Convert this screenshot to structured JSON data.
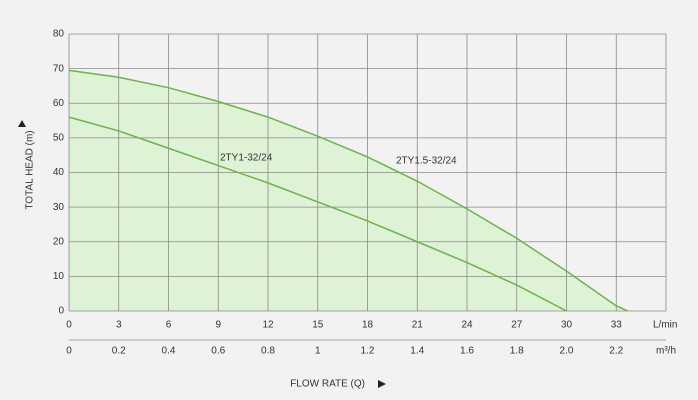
{
  "chart_data": {
    "type": "line",
    "xlabel": "FLOW RATE (Q)",
    "ylabel": "TOTAL HEAD (m)",
    "x_unit": "L/min",
    "x2_unit": "m³/h",
    "xlim": [
      0,
      36
    ],
    "xticks": [
      0,
      3,
      6,
      9,
      12,
      15,
      18,
      21,
      24,
      27,
      30,
      33
    ],
    "x2lim": [
      0,
      2.4
    ],
    "x2ticks": [
      0,
      0.2,
      0.4,
      0.6,
      0.8,
      1,
      1.2,
      1.4,
      1.6,
      1.8,
      {
        "value": 2,
        "label": "2.0"
      },
      2.2
    ],
    "ylim": [
      0,
      80
    ],
    "yticks": [
      0,
      10,
      20,
      30,
      40,
      50,
      60,
      70,
      80
    ],
    "grid": true,
    "area_color": "#def2d6",
    "series": [
      {
        "name": "2TY1-32/24",
        "color": "#6cb34a",
        "x": [
          0,
          3,
          6,
          9,
          12,
          15,
          18,
          21,
          24,
          27,
          30
        ],
        "values": [
          56,
          52,
          47,
          42,
          37,
          31.5,
          26,
          20,
          14,
          7.5,
          0
        ]
      },
      {
        "name": "2TY1.5-32/24",
        "color": "#6cb34a",
        "x": [
          0,
          3,
          6,
          9,
          12,
          15,
          18,
          21,
          24,
          27,
          30,
          33,
          33.7
        ],
        "values": [
          69.5,
          67.5,
          64.5,
          60.5,
          56,
          50.5,
          44.5,
          37.5,
          29.5,
          21,
          11.5,
          1.5,
          0
        ]
      }
    ]
  }
}
